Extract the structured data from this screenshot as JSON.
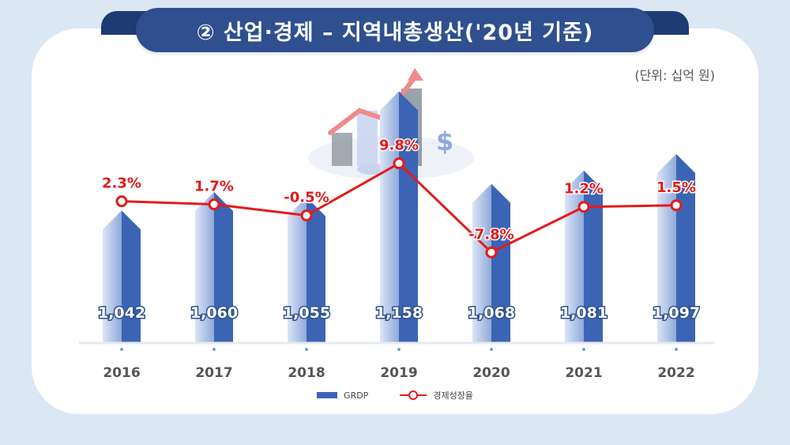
{
  "title": "② 산업·경제 – 지역내총생산('20년 기준)",
  "unit_label": "(단위: 십억 원)",
  "colors": {
    "bar_light": "#c9d6ee",
    "bar_dark": "#3c64b4",
    "line": "#e31b1b",
    "banner": "#2f4f8f"
  },
  "chart_data": {
    "type": "bar",
    "categories": [
      "2016",
      "2017",
      "2018",
      "2019",
      "2020",
      "2021",
      "2022"
    ],
    "series": [
      {
        "name": "GRDP",
        "type": "bar",
        "values": [
          1042,
          1060,
          1055,
          1158,
          1068,
          1081,
          1097
        ],
        "labels": [
          "1,042",
          "1,060",
          "1,055",
          "1,158",
          "1,068",
          "1,081",
          "1,097"
        ]
      },
      {
        "name": "경제성장율",
        "type": "line",
        "values": [
          2.3,
          1.7,
          -0.5,
          9.8,
          -7.8,
          1.2,
          1.5
        ],
        "labels": [
          "2.3%",
          "1.7%",
          "-0.5%",
          "9.8%",
          "-7.8%",
          "1.2%",
          "1.5%"
        ]
      }
    ],
    "legend_position": "bottom"
  }
}
